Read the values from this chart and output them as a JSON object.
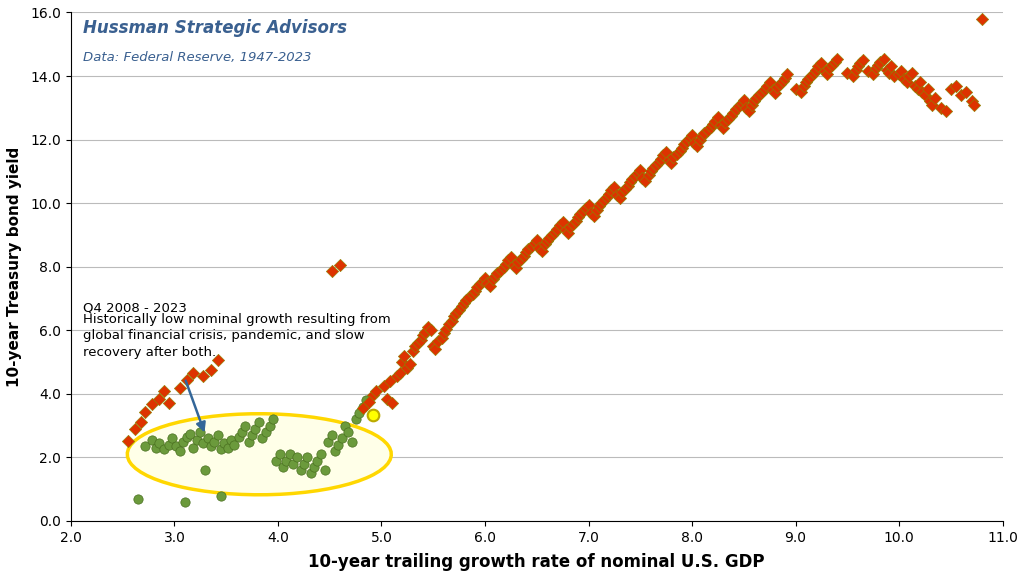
{
  "title_line1": "Hussman Strategic Advisors",
  "title_line2": "Data: Federal Reserve, 1947-2023",
  "xlabel": "10-year trailing growth rate of nominal U.S. GDP",
  "ylabel": "10-year Treasury bond yield",
  "xlim": [
    2.0,
    11.0
  ],
  "ylim": [
    0.0,
    16.0
  ],
  "xticks": [
    2.0,
    3.0,
    4.0,
    5.0,
    6.0,
    7.0,
    8.0,
    9.0,
    10.0,
    11.0
  ],
  "yticks": [
    0.0,
    2.0,
    4.0,
    6.0,
    8.0,
    10.0,
    12.0,
    14.0,
    16.0
  ],
  "annotation_title": "Q4 2008 - 2023",
  "annotation_text": "Historically low nominal growth resulting from\nglobal financial crisis, pandemic, and slow\nrecovery after both.",
  "orange_color": "#DD3300",
  "orange_edge": "#888800",
  "green_color": "#6B9A3C",
  "green_edge": "#4A7020",
  "yellow_dot_color": "#FFFF00",
  "yellow_dot_edge": "#BBAA00",
  "ellipse_color": "#FFD700",
  "ellipse_fill": "#FFFFE8",
  "arrow_color": "#336699",
  "orange_points": [
    [
      4.92,
      3.95
    ],
    [
      4.95,
      4.1
    ],
    [
      5.02,
      4.25
    ],
    [
      5.08,
      4.4
    ],
    [
      5.05,
      3.85
    ],
    [
      5.1,
      3.7
    ],
    [
      5.15,
      4.55
    ],
    [
      5.18,
      4.65
    ],
    [
      5.2,
      5.0
    ],
    [
      5.22,
      5.2
    ],
    [
      5.25,
      4.8
    ],
    [
      5.28,
      4.95
    ],
    [
      5.3,
      5.35
    ],
    [
      5.32,
      5.5
    ],
    [
      5.35,
      5.6
    ],
    [
      5.38,
      5.7
    ],
    [
      5.4,
      5.85
    ],
    [
      5.42,
      5.95
    ],
    [
      5.45,
      6.1
    ],
    [
      5.48,
      6.0
    ],
    [
      5.5,
      5.5
    ],
    [
      5.52,
      5.4
    ],
    [
      5.55,
      5.65
    ],
    [
      5.58,
      5.75
    ],
    [
      5.6,
      5.9
    ],
    [
      5.62,
      6.05
    ],
    [
      5.65,
      6.2
    ],
    [
      5.68,
      6.3
    ],
    [
      5.7,
      6.45
    ],
    [
      5.72,
      6.55
    ],
    [
      5.75,
      6.65
    ],
    [
      5.78,
      6.75
    ],
    [
      5.8,
      6.85
    ],
    [
      5.82,
      6.95
    ],
    [
      5.85,
      7.05
    ],
    [
      5.88,
      7.15
    ],
    [
      5.9,
      7.25
    ],
    [
      5.92,
      7.35
    ],
    [
      5.95,
      7.45
    ],
    [
      5.98,
      7.55
    ],
    [
      6.0,
      7.65
    ],
    [
      6.02,
      7.5
    ],
    [
      6.05,
      7.4
    ],
    [
      6.08,
      7.6
    ],
    [
      6.1,
      7.7
    ],
    [
      6.12,
      7.8
    ],
    [
      6.15,
      7.9
    ],
    [
      6.18,
      8.0
    ],
    [
      6.2,
      8.1
    ],
    [
      6.22,
      8.2
    ],
    [
      6.25,
      8.3
    ],
    [
      6.28,
      8.05
    ],
    [
      6.3,
      7.95
    ],
    [
      6.32,
      8.15
    ],
    [
      6.35,
      8.25
    ],
    [
      6.38,
      8.35
    ],
    [
      6.4,
      8.45
    ],
    [
      6.42,
      8.55
    ],
    [
      6.45,
      8.65
    ],
    [
      6.48,
      8.75
    ],
    [
      6.5,
      8.85
    ],
    [
      6.52,
      8.6
    ],
    [
      6.55,
      8.5
    ],
    [
      6.58,
      8.7
    ],
    [
      6.6,
      8.8
    ],
    [
      6.62,
      8.9
    ],
    [
      6.65,
      9.0
    ],
    [
      6.68,
      9.1
    ],
    [
      6.7,
      9.2
    ],
    [
      6.72,
      9.3
    ],
    [
      6.75,
      9.4
    ],
    [
      6.78,
      9.15
    ],
    [
      6.8,
      9.05
    ],
    [
      6.82,
      9.25
    ],
    [
      6.85,
      9.35
    ],
    [
      6.88,
      9.45
    ],
    [
      6.9,
      9.55
    ],
    [
      6.92,
      9.65
    ],
    [
      6.95,
      9.75
    ],
    [
      6.98,
      9.85
    ],
    [
      7.0,
      9.95
    ],
    [
      7.02,
      9.7
    ],
    [
      7.05,
      9.6
    ],
    [
      7.08,
      9.8
    ],
    [
      7.1,
      9.9
    ],
    [
      7.12,
      10.0
    ],
    [
      7.15,
      10.1
    ],
    [
      7.18,
      10.2
    ],
    [
      7.2,
      10.3
    ],
    [
      7.22,
      10.4
    ],
    [
      7.25,
      10.5
    ],
    [
      7.28,
      10.25
    ],
    [
      7.3,
      10.15
    ],
    [
      7.32,
      10.35
    ],
    [
      7.35,
      10.45
    ],
    [
      7.38,
      10.55
    ],
    [
      7.4,
      10.65
    ],
    [
      7.42,
      10.75
    ],
    [
      7.45,
      10.85
    ],
    [
      7.48,
      10.95
    ],
    [
      7.5,
      11.05
    ],
    [
      7.52,
      10.8
    ],
    [
      7.55,
      10.7
    ],
    [
      7.58,
      10.9
    ],
    [
      7.6,
      11.0
    ],
    [
      7.62,
      11.1
    ],
    [
      7.65,
      11.2
    ],
    [
      7.68,
      11.3
    ],
    [
      7.7,
      11.4
    ],
    [
      7.72,
      11.5
    ],
    [
      7.75,
      11.6
    ],
    [
      7.78,
      11.35
    ],
    [
      7.8,
      11.25
    ],
    [
      7.82,
      11.45
    ],
    [
      7.85,
      11.55
    ],
    [
      7.88,
      11.65
    ],
    [
      7.9,
      11.75
    ],
    [
      7.92,
      11.85
    ],
    [
      7.95,
      11.95
    ],
    [
      7.98,
      12.05
    ],
    [
      8.0,
      12.15
    ],
    [
      8.02,
      11.9
    ],
    [
      8.05,
      11.8
    ],
    [
      8.08,
      12.0
    ],
    [
      8.1,
      12.1
    ],
    [
      8.12,
      12.2
    ],
    [
      8.15,
      12.3
    ],
    [
      8.18,
      12.4
    ],
    [
      8.2,
      12.5
    ],
    [
      8.22,
      12.6
    ],
    [
      8.25,
      12.7
    ],
    [
      8.28,
      12.45
    ],
    [
      8.3,
      12.35
    ],
    [
      8.32,
      12.55
    ],
    [
      8.35,
      12.65
    ],
    [
      8.38,
      12.75
    ],
    [
      8.4,
      12.85
    ],
    [
      8.42,
      12.95
    ],
    [
      8.45,
      13.05
    ],
    [
      8.48,
      13.15
    ],
    [
      8.5,
      13.25
    ],
    [
      8.52,
      13.0
    ],
    [
      8.55,
      12.9
    ],
    [
      8.58,
      13.1
    ],
    [
      8.6,
      13.2
    ],
    [
      8.62,
      13.3
    ],
    [
      8.65,
      13.4
    ],
    [
      8.68,
      13.5
    ],
    [
      8.7,
      13.6
    ],
    [
      8.72,
      13.7
    ],
    [
      8.75,
      13.8
    ],
    [
      8.78,
      13.55
    ],
    [
      8.8,
      13.45
    ],
    [
      8.82,
      13.65
    ],
    [
      8.85,
      13.75
    ],
    [
      8.88,
      13.85
    ],
    [
      8.9,
      13.95
    ],
    [
      8.92,
      14.05
    ],
    [
      9.0,
      13.6
    ],
    [
      9.05,
      13.5
    ],
    [
      9.08,
      13.7
    ],
    [
      9.1,
      13.8
    ],
    [
      9.12,
      13.9
    ],
    [
      9.15,
      14.0
    ],
    [
      9.18,
      14.1
    ],
    [
      9.2,
      14.2
    ],
    [
      9.22,
      14.3
    ],
    [
      9.25,
      14.4
    ],
    [
      9.28,
      14.15
    ],
    [
      9.3,
      14.05
    ],
    [
      9.32,
      14.25
    ],
    [
      9.35,
      14.35
    ],
    [
      9.38,
      14.45
    ],
    [
      9.4,
      14.55
    ],
    [
      9.5,
      14.1
    ],
    [
      9.55,
      14.0
    ],
    [
      9.58,
      14.2
    ],
    [
      9.6,
      14.3
    ],
    [
      9.62,
      14.4
    ],
    [
      9.65,
      14.5
    ],
    [
      9.7,
      14.15
    ],
    [
      9.75,
      14.05
    ],
    [
      9.78,
      14.25
    ],
    [
      9.8,
      14.35
    ],
    [
      9.82,
      14.45
    ],
    [
      9.85,
      14.55
    ],
    [
      9.88,
      14.2
    ],
    [
      9.9,
      14.1
    ],
    [
      9.92,
      14.3
    ],
    [
      9.95,
      14.0
    ],
    [
      10.0,
      14.05
    ],
    [
      10.02,
      14.15
    ],
    [
      10.05,
      13.9
    ],
    [
      10.08,
      13.8
    ],
    [
      10.1,
      14.0
    ],
    [
      10.12,
      14.1
    ],
    [
      10.15,
      13.7
    ],
    [
      10.18,
      13.6
    ],
    [
      10.2,
      13.8
    ],
    [
      10.22,
      13.5
    ],
    [
      10.25,
      13.4
    ],
    [
      10.28,
      13.6
    ],
    [
      10.3,
      13.2
    ],
    [
      10.32,
      13.1
    ],
    [
      10.35,
      13.3
    ],
    [
      10.4,
      13.0
    ],
    [
      10.45,
      12.9
    ],
    [
      10.5,
      13.6
    ],
    [
      10.55,
      13.7
    ],
    [
      10.6,
      13.4
    ],
    [
      10.65,
      13.5
    ],
    [
      10.7,
      13.2
    ],
    [
      10.72,
      13.1
    ],
    [
      10.8,
      15.8
    ],
    [
      4.52,
      7.85
    ],
    [
      4.6,
      8.05
    ],
    [
      4.82,
      3.55
    ],
    [
      4.88,
      3.75
    ],
    [
      2.55,
      2.52
    ],
    [
      2.62,
      2.9
    ],
    [
      2.68,
      3.1
    ],
    [
      2.72,
      3.42
    ],
    [
      2.78,
      3.68
    ],
    [
      2.85,
      3.85
    ],
    [
      2.9,
      4.1
    ],
    [
      2.95,
      3.7
    ],
    [
      3.05,
      4.2
    ],
    [
      3.12,
      4.45
    ],
    [
      3.18,
      4.65
    ],
    [
      3.28,
      4.55
    ],
    [
      3.35,
      4.75
    ],
    [
      3.42,
      5.05
    ]
  ],
  "green_points": [
    [
      2.72,
      2.35
    ],
    [
      2.78,
      2.55
    ],
    [
      2.82,
      2.3
    ],
    [
      2.85,
      2.45
    ],
    [
      2.9,
      2.25
    ],
    [
      2.95,
      2.4
    ],
    [
      2.98,
      2.6
    ],
    [
      3.02,
      2.35
    ],
    [
      3.05,
      2.2
    ],
    [
      3.08,
      2.5
    ],
    [
      3.12,
      2.65
    ],
    [
      3.15,
      2.75
    ],
    [
      3.18,
      2.3
    ],
    [
      3.22,
      2.55
    ],
    [
      3.25,
      2.8
    ],
    [
      3.28,
      2.45
    ],
    [
      3.32,
      2.6
    ],
    [
      3.35,
      2.35
    ],
    [
      3.38,
      2.5
    ],
    [
      3.42,
      2.7
    ],
    [
      3.45,
      2.25
    ],
    [
      3.48,
      2.45
    ],
    [
      3.52,
      2.3
    ],
    [
      3.55,
      2.55
    ],
    [
      3.58,
      2.4
    ],
    [
      3.62,
      2.65
    ],
    [
      3.65,
      2.8
    ],
    [
      3.68,
      3.0
    ],
    [
      3.72,
      2.5
    ],
    [
      3.75,
      2.7
    ],
    [
      3.78,
      2.9
    ],
    [
      3.82,
      3.1
    ],
    [
      3.85,
      2.6
    ],
    [
      3.88,
      2.8
    ],
    [
      3.92,
      3.0
    ],
    [
      3.95,
      3.2
    ],
    [
      3.98,
      1.9
    ],
    [
      4.02,
      2.1
    ],
    [
      4.05,
      1.7
    ],
    [
      4.08,
      1.9
    ],
    [
      4.12,
      2.1
    ],
    [
      4.15,
      1.8
    ],
    [
      4.18,
      2.0
    ],
    [
      4.22,
      1.6
    ],
    [
      4.25,
      1.8
    ],
    [
      4.28,
      2.0
    ],
    [
      4.32,
      1.5
    ],
    [
      4.35,
      1.7
    ],
    [
      4.38,
      1.9
    ],
    [
      4.42,
      2.1
    ],
    [
      4.45,
      1.6
    ],
    [
      4.48,
      2.5
    ],
    [
      4.52,
      2.7
    ],
    [
      4.55,
      2.2
    ],
    [
      4.58,
      2.4
    ],
    [
      4.62,
      2.6
    ],
    [
      4.65,
      3.0
    ],
    [
      4.68,
      2.8
    ],
    [
      4.72,
      2.5
    ],
    [
      4.75,
      3.2
    ],
    [
      4.78,
      3.4
    ],
    [
      4.82,
      3.6
    ],
    [
      4.85,
      3.8
    ],
    [
      2.65,
      0.7
    ],
    [
      3.1,
      0.6
    ],
    [
      3.45,
      0.8
    ],
    [
      3.3,
      1.6
    ]
  ],
  "yellow_point": [
    4.92,
    3.35
  ]
}
